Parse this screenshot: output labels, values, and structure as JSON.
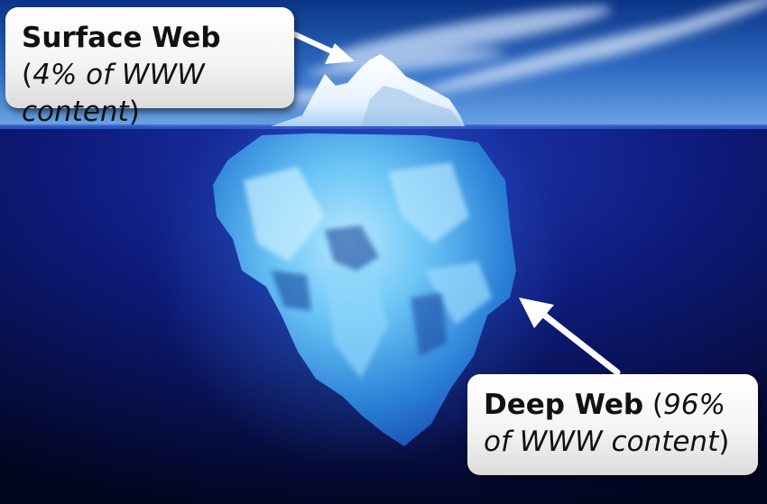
{
  "callouts": {
    "surface": {
      "title": "Surface Web",
      "open_paren": " (",
      "detail": "4% of WWW content",
      "close_paren": ")"
    },
    "deep": {
      "title": "Deep Web",
      "open_paren": " (",
      "detail": "96% of WWW content",
      "close_paren": ")"
    }
  },
  "colors": {
    "sky_top": "#0d3a8c",
    "sky_bottom": "#5f9be0",
    "ocean_surface": "#1a2fa8",
    "ocean_deep": "#030726",
    "ice_light": "#e8f6ff",
    "ice_submerged": "#4fb4f0",
    "arrow": "#ffffff"
  }
}
